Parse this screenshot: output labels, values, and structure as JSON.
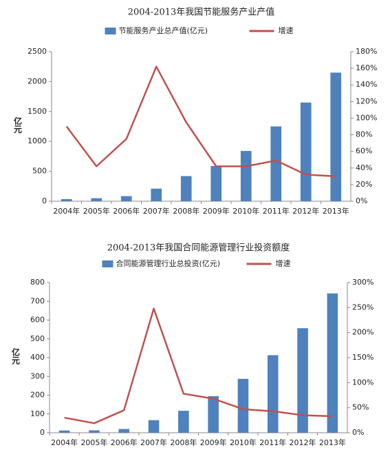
{
  "chart_data": [
    {
      "type": "bar",
      "title": "2004-2013年我国节能服务产业产值",
      "y_label": "亿元",
      "categories": [
        "2004年",
        "2005年",
        "2006年",
        "2007年",
        "2008年",
        "2009年",
        "2010年",
        "2011年",
        "2012年",
        "2013年"
      ],
      "series": [
        {
          "name": "节能服务产业总产值(亿元)",
          "type": "bar",
          "color": "#4f81bd",
          "values": [
            35,
            50,
            85,
            210,
            420,
            590,
            840,
            1250,
            1650,
            2150
          ]
        },
        {
          "name": "增速",
          "type": "line",
          "axis": "y2",
          "color": "#c0504d",
          "values": [
            90,
            42,
            75,
            162,
            95,
            42,
            42,
            49,
            32,
            30
          ]
        }
      ],
      "ylim": [
        0,
        2500
      ],
      "yticks": [
        0,
        500,
        1000,
        1500,
        2000,
        2500
      ],
      "y2lim": [
        0,
        180
      ],
      "y2ticks": [
        {
          "value": 0,
          "label": "0%"
        },
        {
          "value": 20,
          "label": "20%"
        },
        {
          "value": 40,
          "label": "40%"
        },
        {
          "value": 60,
          "label": "60%"
        },
        {
          "value": 80,
          "label": "80%"
        },
        {
          "value": 100,
          "label": "100%"
        },
        {
          "value": 120,
          "label": "120%"
        },
        {
          "value": 140,
          "label": "140%"
        },
        {
          "value": 160,
          "label": "160%"
        },
        {
          "value": 180,
          "label": "180%"
        }
      ]
    },
    {
      "type": "bar",
      "title": "2004-2013年我国合同能源管理行业投资额度",
      "y_label": "亿元",
      "categories": [
        "2004年",
        "2005年",
        "2006年",
        "2007年",
        "2008年",
        "2009年",
        "2010年",
        "2011年",
        "2012年",
        "2013年"
      ],
      "series": [
        {
          "name": "合同能源管理行业总投资(亿元)",
          "type": "bar",
          "color": "#4f81bd",
          "values": [
            12,
            13,
            20,
            67,
            117,
            195,
            287,
            413,
            557,
            742
          ]
        },
        {
          "name": "增速",
          "type": "line",
          "axis": "y2",
          "color": "#c0504d",
          "values": [
            30,
            19,
            45,
            248,
            78,
            68,
            47,
            43,
            35,
            33
          ]
        }
      ],
      "ylim": [
        0,
        800
      ],
      "yticks": [
        0,
        100,
        200,
        300,
        400,
        500,
        600,
        700,
        800
      ],
      "y2lim": [
        0,
        300
      ],
      "y2ticks": [
        {
          "value": 0,
          "label": "0%"
        },
        {
          "value": 50,
          "label": "50%"
        },
        {
          "value": 100,
          "label": "100%"
        },
        {
          "value": 150,
          "label": "150%"
        },
        {
          "value": 200,
          "label": "200%"
        },
        {
          "value": 250,
          "label": "250%"
        },
        {
          "value": 300,
          "label": "300%"
        }
      ]
    }
  ]
}
